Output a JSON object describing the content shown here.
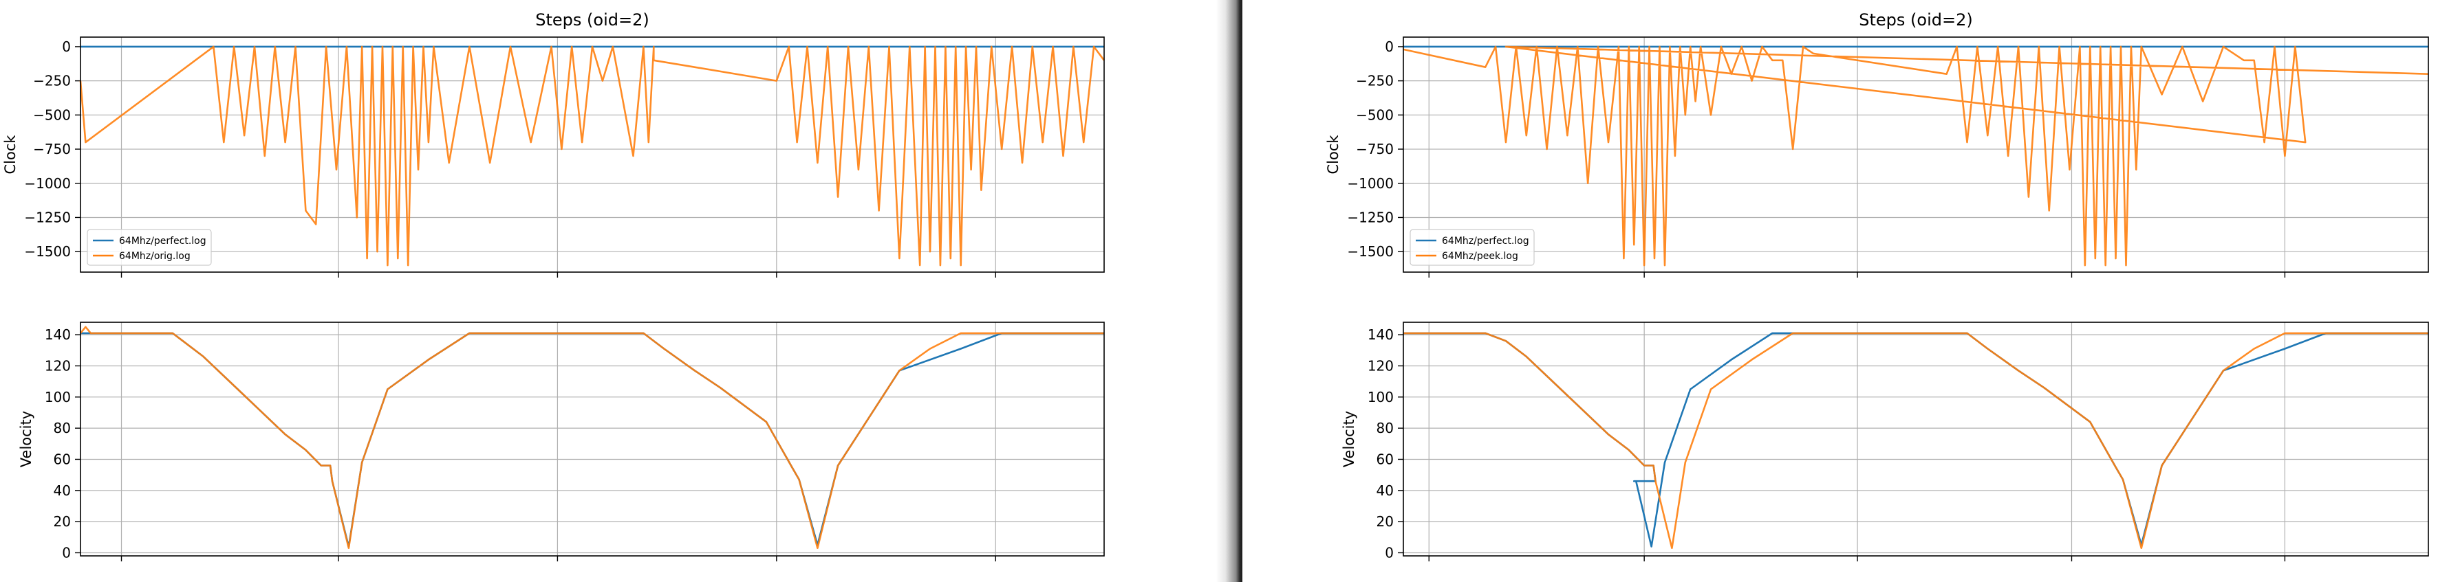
{
  "chart_data": [
    {
      "type": "line",
      "title": "Steps (oid=2)",
      "ylabel": "Clock",
      "ylim": [
        -1650,
        70
      ],
      "yticks": [
        0,
        -250,
        -500,
        -750,
        -1000,
        -1250,
        -1500
      ],
      "ytick_labels": [
        "0",
        "−250",
        "−500",
        "−750",
        "−1000",
        "−1250",
        "−1500"
      ],
      "grid": true,
      "legend_position": "lower-left",
      "series": [
        {
          "name": "64Mhz/perfect.log",
          "color": "#1f77b4",
          "x": [
            0,
            1
          ],
          "y": [
            0,
            0
          ]
        },
        {
          "name": "64Mhz/orig.log",
          "color": "#ff7f0e",
          "x": [
            0.0,
            0.005,
            0.13,
            0.14,
            0.15,
            0.16,
            0.17,
            0.18,
            0.19,
            0.2,
            0.21,
            0.22,
            0.23,
            0.24,
            0.25,
            0.26,
            0.27,
            0.275,
            0.28,
            0.285,
            0.29,
            0.295,
            0.3,
            0.305,
            0.31,
            0.315,
            0.32,
            0.325,
            0.33,
            0.335,
            0.34,
            0.345,
            0.36,
            0.38,
            0.4,
            0.42,
            0.44,
            0.46,
            0.47,
            0.48,
            0.49,
            0.5,
            0.51,
            0.52,
            0.54,
            0.55,
            0.555,
            0.56,
            0.56,
            0.6,
            0.68,
            0.692,
            0.7,
            0.71,
            0.72,
            0.73,
            0.74,
            0.75,
            0.76,
            0.77,
            0.78,
            0.79,
            0.8,
            0.81,
            0.82,
            0.825,
            0.83,
            0.835,
            0.84,
            0.845,
            0.85,
            0.855,
            0.86,
            0.865,
            0.87,
            0.875,
            0.88,
            0.89,
            0.9,
            0.91,
            0.92,
            0.93,
            0.94,
            0.95,
            0.96,
            0.97,
            0.98,
            0.99,
            1.0
          ],
          "y": [
            -250,
            -700,
            0,
            -700,
            0,
            -650,
            0,
            -800,
            0,
            -700,
            0,
            -1200,
            -1300,
            0,
            -900,
            0,
            -1250,
            0,
            -1550,
            0,
            -1500,
            0,
            -1600,
            0,
            -1550,
            0,
            -1600,
            0,
            -900,
            0,
            -700,
            0,
            -850,
            0,
            -850,
            0,
            -700,
            0,
            -750,
            0,
            -700,
            0,
            -250,
            0,
            -800,
            0,
            -700,
            0,
            -100,
            -150,
            -250,
            0,
            -700,
            0,
            -850,
            0,
            -1100,
            0,
            -900,
            0,
            -1200,
            0,
            -1550,
            0,
            -1600,
            0,
            -1500,
            0,
            -1600,
            0,
            -1550,
            0,
            -1600,
            0,
            -900,
            0,
            -1050,
            0,
            -750,
            0,
            -850,
            0,
            -700,
            0,
            -800,
            0,
            -700,
            0,
            -100
          ]
        }
      ]
    },
    {
      "type": "line",
      "title": "",
      "ylabel": "Velocity",
      "ylim": [
        -2,
        148
      ],
      "yticks": [
        0,
        20,
        40,
        60,
        80,
        100,
        120,
        140
      ],
      "ytick_labels": [
        "0",
        "20",
        "40",
        "60",
        "80",
        "100",
        "120",
        "140"
      ],
      "grid": true,
      "series": [
        {
          "name": "perfect",
          "color": "#1f77b4",
          "x": [
            0,
            0.09,
            0.1,
            0.12,
            0.16,
            0.2,
            0.22,
            0.235,
            0.244,
            0.246,
            0.262,
            0.275,
            0.3,
            0.34,
            0.38,
            0.55,
            0.57,
            0.6,
            0.625,
            0.67,
            0.695,
            0.702,
            0.72,
            0.74,
            0.8,
            0.86,
            0.9,
            1.0
          ],
          "y": [
            141,
            141,
            136,
            126,
            101,
            76,
            66,
            56,
            56,
            46,
            4,
            58,
            105,
            124,
            141,
            141,
            131,
            117,
            106,
            84,
            55,
            47,
            5,
            56,
            117,
            131,
            141,
            141
          ]
        },
        {
          "name": "orig",
          "color": "#ff7f0e",
          "x": [
            0,
            0.005,
            0.01,
            0.09,
            0.1,
            0.12,
            0.16,
            0.2,
            0.22,
            0.235,
            0.244,
            0.246,
            0.262,
            0.275,
            0.3,
            0.34,
            0.38,
            0.55,
            0.57,
            0.6,
            0.625,
            0.67,
            0.695,
            0.702,
            0.72,
            0.74,
            0.8,
            0.83,
            0.86,
            0.88,
            0.9,
            1.0
          ],
          "y": [
            141,
            145,
            141,
            141,
            136,
            126,
            101,
            76,
            66,
            56,
            56,
            46,
            3,
            58,
            105,
            124,
            141,
            141,
            131,
            117,
            106,
            84,
            55,
            47,
            3,
            56,
            117,
            131,
            141,
            141,
            141,
            141
          ]
        }
      ]
    },
    {
      "type": "line",
      "title": "Steps (oid=2)",
      "ylabel": "Clock",
      "ylim": [
        -1650,
        70
      ],
      "yticks": [
        0,
        -250,
        -500,
        -750,
        -1000,
        -1250,
        -1500
      ],
      "ytick_labels": [
        "0",
        "−250",
        "−500",
        "−750",
        "−1000",
        "−1250",
        "−1500"
      ],
      "grid": true,
      "legend_position": "lower-left",
      "series": [
        {
          "name": "64Mhz/perfect.log",
          "color": "#1f77b4",
          "x": [
            0,
            1
          ],
          "y": [
            0,
            0
          ]
        },
        {
          "name": "64Mhz/peek.log",
          "color": "#ff7f0e",
          "x": [
            0.0,
            0.08,
            0.09,
            0.1,
            0.11,
            0.12,
            0.13,
            0.14,
            0.15,
            0.16,
            0.17,
            0.18,
            0.19,
            0.2,
            0.21,
            0.215,
            0.22,
            0.225,
            0.23,
            0.235,
            0.24,
            0.245,
            0.25,
            0.255,
            0.26,
            0.265,
            0.27,
            0.275,
            0.28,
            0.285,
            0.29,
            0.3,
            0.31,
            0.32,
            0.33,
            0.34,
            0.35,
            0.36,
            0.37,
            0.38,
            0.39,
            0.4,
            0.53,
            0.54,
            0.55,
            0.56,
            0.57,
            0.58,
            0.59,
            0.6,
            0.61,
            0.62,
            0.63,
            0.64,
            0.65,
            0.66,
            0.665,
            0.67,
            0.675,
            0.68,
            0.685,
            0.69,
            0.695,
            0.7,
            0.705,
            0.71,
            0.715,
            0.72,
            0.74,
            0.76,
            0.78,
            0.8,
            0.82,
            0.83,
            0.84,
            0.85,
            0.86,
            0.87,
            0.88,
            0.1,
            1.0
          ],
          "y": [
            -20,
            -150,
            0,
            -700,
            0,
            -650,
            0,
            -750,
            0,
            -650,
            0,
            -1000,
            0,
            -700,
            0,
            -1550,
            0,
            -1450,
            0,
            -1600,
            0,
            -1550,
            0,
            -1600,
            0,
            -800,
            0,
            -500,
            0,
            -400,
            0,
            -500,
            0,
            -200,
            0,
            -250,
            0,
            -100,
            -100,
            -750,
            0,
            -50,
            -200,
            0,
            -700,
            0,
            -650,
            0,
            -800,
            0,
            -1100,
            0,
            -1200,
            0,
            -900,
            0,
            -1600,
            0,
            -1550,
            0,
            -1600,
            0,
            -1550,
            0,
            -1600,
            0,
            -900,
            0,
            -350,
            0,
            -400,
            0,
            -100,
            -100,
            -700,
            0,
            -800,
            0,
            -700,
            0,
            -200
          ]
        }
      ]
    },
    {
      "type": "line",
      "title": "",
      "ylabel": "Velocity",
      "ylim": [
        -2,
        148
      ],
      "yticks": [
        0,
        20,
        40,
        60,
        80,
        100,
        120,
        140
      ],
      "ytick_labels": [
        "0",
        "20",
        "40",
        "60",
        "80",
        "100",
        "120",
        "140"
      ],
      "grid": true,
      "series": [
        {
          "name": "perfect",
          "color": "#1f77b4",
          "x": [
            0,
            0.08,
            0.1,
            0.12,
            0.16,
            0.2,
            0.22,
            0.235,
            0.244,
            0.246,
            0.225,
            0.227,
            0.242,
            0.255,
            0.28,
            0.32,
            0.36,
            0.55,
            0.57,
            0.6,
            0.625,
            0.67,
            0.695,
            0.702,
            0.72,
            0.74,
            0.8,
            0.86,
            0.9,
            1.0
          ],
          "y": [
            141,
            141,
            136,
            126,
            101,
            76,
            66,
            56,
            56,
            46,
            46,
            46,
            4,
            58,
            105,
            124,
            141,
            141,
            131,
            117,
            106,
            84,
            55,
            47,
            5,
            56,
            117,
            131,
            141,
            141
          ]
        },
        {
          "name": "peek",
          "color": "#ff7f0e",
          "x": [
            0,
            0.08,
            0.1,
            0.12,
            0.16,
            0.2,
            0.22,
            0.235,
            0.244,
            0.246,
            0.262,
            0.275,
            0.3,
            0.34,
            0.38,
            0.55,
            0.57,
            0.6,
            0.625,
            0.67,
            0.695,
            0.702,
            0.72,
            0.74,
            0.8,
            0.83,
            0.86,
            0.9,
            1.0
          ],
          "y": [
            141,
            141,
            136,
            126,
            101,
            76,
            66,
            56,
            56,
            46,
            3,
            58,
            105,
            124,
            141,
            141,
            131,
            117,
            106,
            84,
            55,
            47,
            3,
            56,
            117,
            131,
            141,
            141,
            141
          ]
        }
      ]
    }
  ]
}
